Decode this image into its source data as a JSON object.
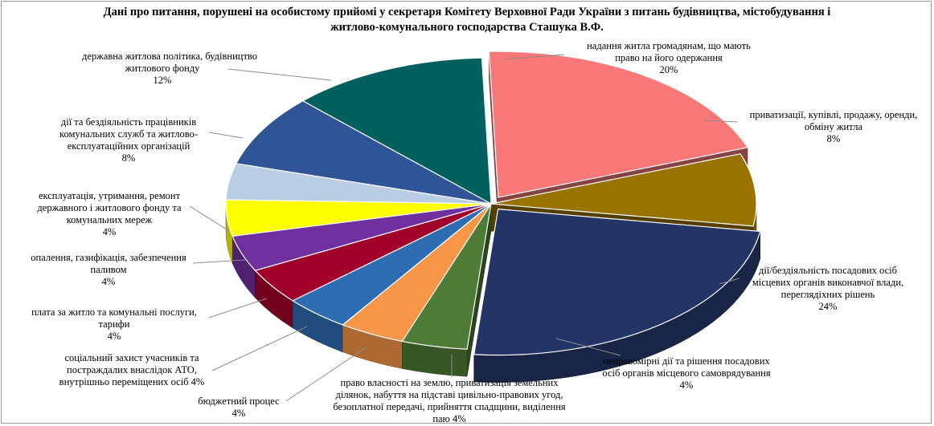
{
  "chart_data": {
    "type": "pie",
    "title_lines": [
      "Дані про питання, порушені на особистому прийомі у секретаря Комітету Верховної Ради України з питань будівництва, містобудування і",
      "житлово-комунального господарства Сташука В.Ф."
    ],
    "slices": [
      {
        "label_lines": [
          "надання житла громадянам, що мають",
          "право на його одержання"
        ],
        "value": 20,
        "value_text": "20%",
        "color": "#F87878"
      },
      {
        "label_lines": [
          "приватизації, купівлі, продажу, оренди,",
          "обміну житла"
        ],
        "value": 8,
        "value_text": "8%",
        "color": "#997300"
      },
      {
        "label_lines": [
          "дії/бездіяльність посадових осіб",
          "місцевих органів виконавчої влади,",
          "переглядіхних  рішень"
        ],
        "value": 24,
        "value_text": "24%",
        "color": "#233566"
      },
      {
        "label_lines": [
          "неправомірні дії та рішення посадових",
          "осіб органів місцевого самоврядування"
        ],
        "value": 4,
        "value_text": "4%",
        "color": "#4E7C36"
      },
      {
        "label_lines": [
          "право власності на землю, приватизація земельних",
          "ділянок, набуття на підставі цивільно-правових угод,",
          "безоплатної передачі, прийняття спадщини, виділення",
          "паю"
        ],
        "value": 4,
        "value_text": "4%",
        "color": "#F79646"
      },
      {
        "label_lines": [
          "бюджетний процес"
        ],
        "value": 4,
        "value_text": "4%",
        "color": "#2E6DB4"
      },
      {
        "label_lines": [
          "соціальний захист учасників та",
          "постраждалих внаслідок АТО,",
          "внутрішньо переміщених осіб"
        ],
        "value": 4,
        "value_text": "4%",
        "color": "#A0002A"
      },
      {
        "label_lines": [
          "плата за житло та комунальні послуги,",
          "тарифи"
        ],
        "value": 4,
        "value_text": "4%",
        "color": "#7030A0"
      },
      {
        "label_lines": [
          "опалення, газифікація, забезпечення",
          "паливом"
        ],
        "value": 4,
        "value_text": "4%",
        "color": "#FFFF00"
      },
      {
        "label_lines": [
          "експлуатація, утримання, ремонт",
          "державного і житлового фонду та",
          "комунальних мереж"
        ],
        "value": 4,
        "value_text": "4%",
        "color": "#B9CDE5"
      },
      {
        "label_lines": [
          "дії  та бездіяльність працівників",
          "комунальних служб та житлово-",
          "експлуатаційних організацій"
        ],
        "value": 8,
        "value_text": "8%",
        "color": "#2F5597"
      },
      {
        "label_lines": [
          "державна житлова політика, будівництво",
          "житлового фонду"
        ],
        "value": 12,
        "value_text": "12%",
        "color": "#006060"
      }
    ],
    "legend": "none",
    "data_labels": "outside with leader lines"
  }
}
